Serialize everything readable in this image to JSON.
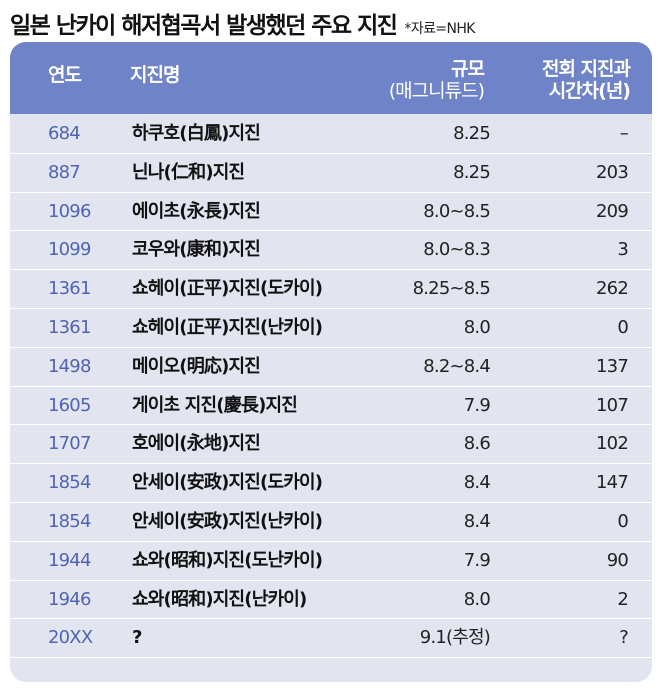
{
  "header": {
    "title": "일본 난카이 해저협곡서 발생했던 주요 지진",
    "source": "*자료=NHK"
  },
  "columns": {
    "year": "연도",
    "name": "지진명",
    "magnitude": "규모",
    "magnitude_sub": "(매그니튜드)",
    "interval": "전회 지진과",
    "interval_sub": "시간차(년)"
  },
  "rows": [
    {
      "year": "684",
      "name": "하쿠호(白鳳)지진",
      "magnitude": "8.25",
      "interval": "–"
    },
    {
      "year": "887",
      "name": "닌나(仁和)지진",
      "magnitude": "8.25",
      "interval": "203"
    },
    {
      "year": "1096",
      "name": "에이초(永長)지진",
      "magnitude": "8.0~8.5",
      "interval": "209"
    },
    {
      "year": "1099",
      "name": "코우와(康和)지진",
      "magnitude": "8.0~8.3",
      "interval": "3"
    },
    {
      "year": "1361",
      "name": "쇼헤이(正平)지진(도카이)",
      "magnitude": "8.25~8.5",
      "interval": "262"
    },
    {
      "year": "1361",
      "name": "쇼헤이(正平)지진(난카이)",
      "magnitude": "8.0",
      "interval": "0"
    },
    {
      "year": "1498",
      "name": "메이오(明応)지진",
      "magnitude": "8.2~8.4",
      "interval": "137"
    },
    {
      "year": "1605",
      "name": "게이초 지진(慶長)지진",
      "magnitude": "7.9",
      "interval": "107"
    },
    {
      "year": "1707",
      "name": "호에이(永地)지진",
      "magnitude": "8.6",
      "interval": "102"
    },
    {
      "year": "1854",
      "name": "안세이(安政)지진(도카이)",
      "magnitude": "8.4",
      "interval": "147"
    },
    {
      "year": "1854",
      "name": "안세이(安政)지진(난카이)",
      "magnitude": "8.4",
      "interval": "0"
    },
    {
      "year": "1944",
      "name": "쇼와(昭和)지진(도난카이)",
      "magnitude": "7.9",
      "interval": "90"
    },
    {
      "year": "1946",
      "name": "쇼와(昭和)지진(난카이)",
      "magnitude": "8.0",
      "interval": "2"
    },
    {
      "year": "20XX",
      "name": "?",
      "magnitude": "9.1(추정)",
      "interval": "?"
    }
  ]
}
